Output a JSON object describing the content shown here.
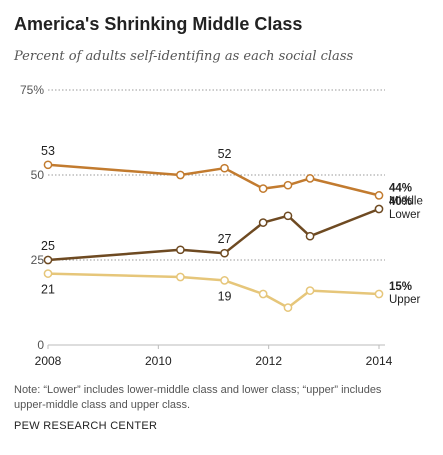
{
  "title": "America's Shrinking Middle Class",
  "subtitle": "Percent of adults self-identifing as each social class",
  "note": "Note: “Lower” includes lower-middle class and lower class; “upper” includes upper-middle class and upper class.",
  "source": "PEW RESEARCH CENTER",
  "chart_data": {
    "type": "line",
    "x": [
      2008,
      2010.4,
      2011.2,
      2011.9,
      2012.35,
      2012.75,
      2014
    ],
    "xticks": [
      "2008",
      "2010",
      "2012",
      "2014"
    ],
    "ylim": [
      0,
      75
    ],
    "yticks": [
      {
        "value": 75,
        "label": "75%"
      },
      {
        "value": 50,
        "label": "50"
      },
      {
        "value": 25,
        "label": "25"
      },
      {
        "value": 0,
        "label": "0"
      }
    ],
    "series": [
      {
        "name": "Middle",
        "color": "#c27b2f",
        "values": [
          53,
          50,
          52,
          46,
          47,
          49,
          44
        ],
        "data_labels": [
          {
            "index": 0,
            "text": "53",
            "pos": "above"
          },
          {
            "index": 2,
            "text": "52",
            "pos": "above"
          }
        ],
        "end_label": {
          "value": "44%",
          "name": "Middle"
        }
      },
      {
        "name": "Lower",
        "color": "#6e4a22",
        "values": [
          25,
          28,
          27,
          36,
          38,
          32,
          40
        ],
        "data_labels": [
          {
            "index": 0,
            "text": "25",
            "pos": "above"
          },
          {
            "index": 2,
            "text": "27",
            "pos": "above"
          }
        ],
        "end_label": {
          "value": "40%",
          "name": "Lower"
        }
      },
      {
        "name": "Upper",
        "color": "#e6c67a",
        "values": [
          21,
          20,
          19,
          15,
          11,
          16,
          15
        ],
        "data_labels": [
          {
            "index": 0,
            "text": "21",
            "pos": "below"
          },
          {
            "index": 2,
            "text": "19",
            "pos": "below"
          }
        ],
        "end_label": {
          "value": "15%",
          "name": "Upper"
        }
      }
    ]
  }
}
